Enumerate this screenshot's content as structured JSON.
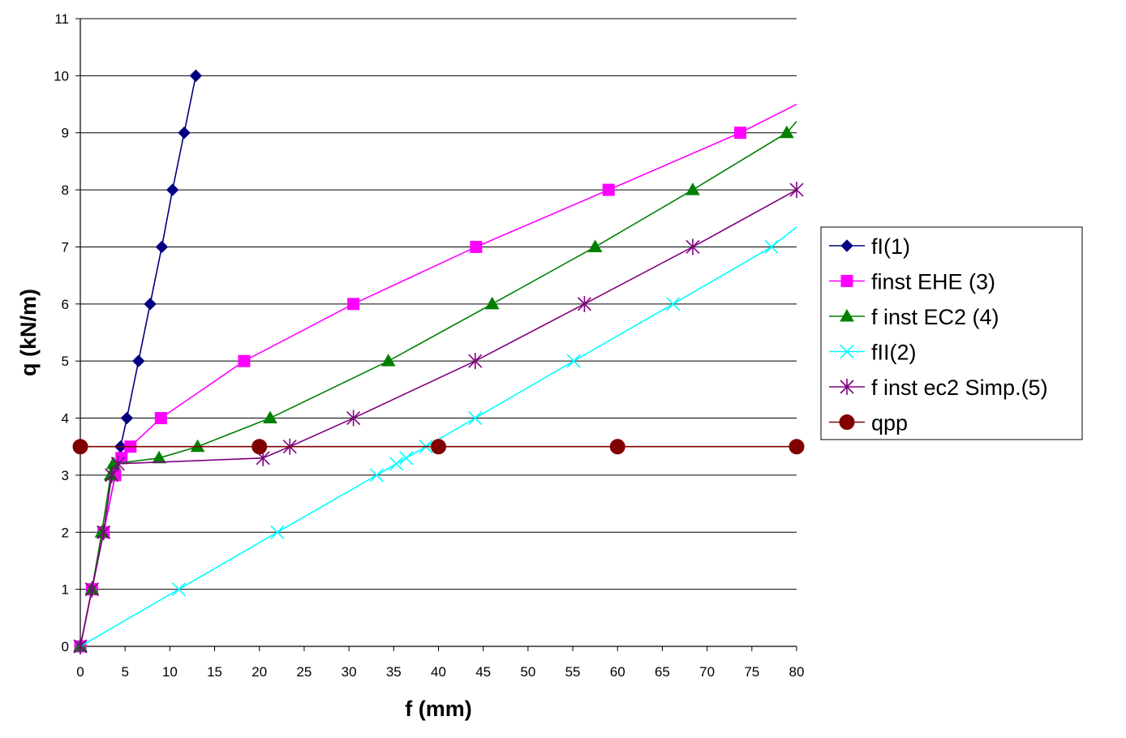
{
  "chart_data": {
    "type": "line",
    "title": "",
    "xlabel": "f (mm)",
    "ylabel": "q (kN/m)",
    "xlim": [
      0,
      80
    ],
    "ylim": [
      0,
      11
    ],
    "xticks": [
      0,
      5,
      10,
      15,
      20,
      25,
      30,
      35,
      40,
      45,
      50,
      55,
      60,
      65,
      70,
      75,
      80
    ],
    "yticks": [
      0,
      1,
      2,
      3,
      4,
      5,
      6,
      7,
      8,
      9,
      10,
      11
    ],
    "grid": "horizontal",
    "legend_position": "right",
    "series": [
      {
        "name": "fI(1)",
        "color": "#000080",
        "marker": "diamond",
        "points": [
          [
            0,
            0
          ],
          [
            1.3,
            1
          ],
          [
            2.6,
            2
          ],
          [
            3.9,
            3
          ],
          [
            4.5,
            3.5
          ],
          [
            5.2,
            4
          ],
          [
            6.5,
            5
          ],
          [
            7.8,
            6
          ],
          [
            9.1,
            7
          ],
          [
            10.3,
            8
          ],
          [
            11.6,
            9
          ],
          [
            12.9,
            10
          ]
        ]
      },
      {
        "name": "finst EHE (3)",
        "color": "#ff00ff",
        "marker": "square",
        "points": [
          [
            0,
            0
          ],
          [
            1.3,
            1
          ],
          [
            2.6,
            2
          ],
          [
            3.9,
            3
          ],
          [
            4.6,
            3.3
          ],
          [
            5.6,
            3.5
          ],
          [
            9.0,
            4
          ],
          [
            18.3,
            5
          ],
          [
            30.5,
            6
          ],
          [
            44.2,
            7
          ],
          [
            59.0,
            8
          ],
          [
            73.7,
            9
          ],
          [
            80,
            9.5
          ]
        ]
      },
      {
        "name": "f inst EC2 (4)",
        "color": "#008000",
        "marker": "triangle",
        "points": [
          [
            0,
            0
          ],
          [
            1.3,
            1
          ],
          [
            2.4,
            2
          ],
          [
            3.4,
            3
          ],
          [
            3.7,
            3.2
          ],
          [
            8.8,
            3.3
          ],
          [
            13.1,
            3.5
          ],
          [
            21.2,
            4
          ],
          [
            34.4,
            5
          ],
          [
            46.0,
            6
          ],
          [
            57.5,
            7
          ],
          [
            68.4,
            8
          ],
          [
            78.9,
            9
          ],
          [
            80,
            9.2
          ]
        ]
      },
      {
        "name": "fII(2)",
        "color": "#00ffff",
        "marker": "x",
        "points": [
          [
            0,
            0
          ],
          [
            11.0,
            1
          ],
          [
            22.0,
            2
          ],
          [
            33.1,
            3
          ],
          [
            35.3,
            3.2
          ],
          [
            36.4,
            3.3
          ],
          [
            38.6,
            3.5
          ],
          [
            44.1,
            4
          ],
          [
            55.1,
            5
          ],
          [
            66.2,
            6
          ],
          [
            77.2,
            7
          ],
          [
            80,
            7.35
          ]
        ]
      },
      {
        "name": "f inst ec2 Simp.(5)",
        "color": "#800080",
        "marker": "asterisk",
        "points": [
          [
            0,
            0
          ],
          [
            1.3,
            1
          ],
          [
            2.6,
            2
          ],
          [
            3.5,
            3
          ],
          [
            4.2,
            3.2
          ],
          [
            20.4,
            3.3
          ],
          [
            23.4,
            3.5
          ],
          [
            30.5,
            4
          ],
          [
            44.1,
            5
          ],
          [
            56.3,
            6
          ],
          [
            68.4,
            7
          ],
          [
            80,
            8
          ]
        ]
      },
      {
        "name": "qpp",
        "color": "#800000",
        "marker": "circle",
        "points": [
          [
            0,
            3.5
          ],
          [
            20,
            3.5
          ],
          [
            40,
            3.5
          ],
          [
            60,
            3.5
          ],
          [
            80,
            3.5
          ]
        ]
      }
    ]
  }
}
